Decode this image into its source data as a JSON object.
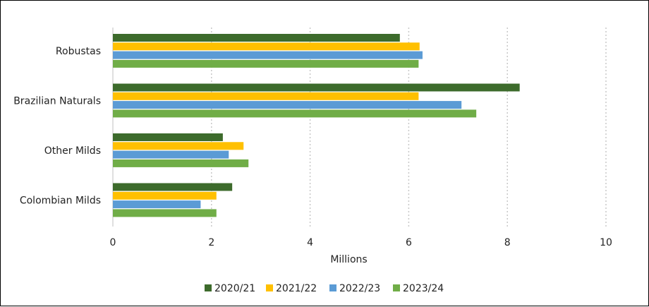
{
  "chart_data": {
    "type": "bar",
    "orientation": "horizontal",
    "categories": [
      "Robustas",
      "Brazilian Naturals",
      "Other Milds",
      "Colombian Milds"
    ],
    "series": [
      {
        "name": "2020/21",
        "color": "#3d6b2c",
        "values": [
          5.82,
          8.25,
          2.23,
          2.42
        ]
      },
      {
        "name": "2021/22",
        "color": "#ffc000",
        "values": [
          6.22,
          6.2,
          2.65,
          2.1
        ]
      },
      {
        "name": "2022/23",
        "color": "#5b9bd5",
        "values": [
          6.28,
          7.07,
          2.35,
          1.78
        ]
      },
      {
        "name": "2023/24",
        "color": "#70ad47",
        "values": [
          6.2,
          7.37,
          2.75,
          2.1
        ]
      }
    ],
    "title": "",
    "xlabel": "Millions",
    "ylabel": "",
    "xlim": [
      0,
      10
    ],
    "xticks": [
      "0",
      "2",
      "4",
      "6",
      "8",
      "10"
    ],
    "grid": "vertical dotted",
    "legend": "bottom"
  }
}
